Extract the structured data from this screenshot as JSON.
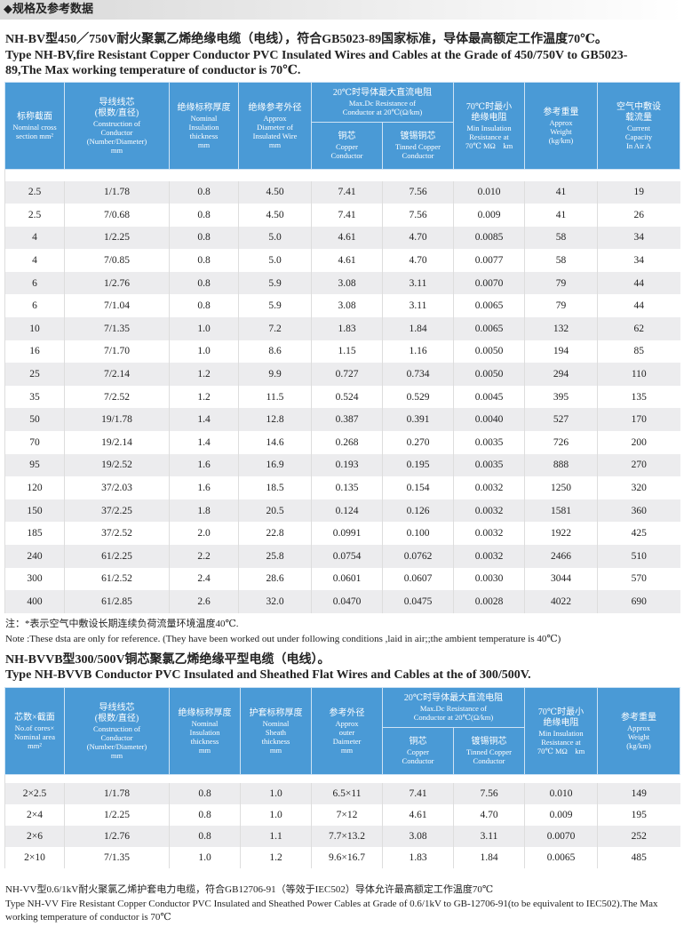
{
  "header": {
    "title": "◆规格及参考数据"
  },
  "section1": {
    "title_zh": "NH-BV型450／750V耐火聚氯乙烯绝缘电缆（电线），符合GB5023-89国家标准，导体最高额定工作温度70℃。",
    "title_en": "Type NH-BV,fire Resistant Copper Conductor PVC Insulated Wires and Cables at the Grade of 450/750V to GB5023-89,The Max working temperature of conductor is 70℃."
  },
  "table1": {
    "columns": [
      {
        "lines": [
          "标称截面",
          "Nominal cross",
          "section mm²"
        ]
      },
      {
        "lines": [
          "导线线芯",
          "(根数/直径)",
          "Construction of",
          "Conductor",
          "(Number/Diameter)",
          "mm"
        ]
      },
      {
        "lines": [
          "绝缘标称厚度",
          "Nominal",
          "Insulation",
          "thickness",
          "mm"
        ]
      },
      {
        "lines": [
          "绝缘参考外径",
          "Approx",
          "Diameter of",
          "Insulated Wire",
          "mm"
        ]
      },
      {
        "lines": [
          "20℃时导体最大直流电阻",
          "Max.Dc Resistance of",
          "Conductor at 20℃(Ω/km)"
        ],
        "sub": [
          {
            "lines": [
              "铜芯",
              "Copper",
              "Conductor"
            ]
          },
          {
            "lines": [
              "镀锡铜芯",
              "Tinned Copper",
              "Conductor"
            ]
          }
        ]
      },
      {
        "lines": [
          "70℃时最小",
          "绝缘电阻",
          "Min Insulation",
          "Resistance at",
          "70℃ MΩ　km"
        ]
      },
      {
        "lines": [
          "参考重量",
          "Approx",
          "Weight",
          "(kg/km)"
        ]
      },
      {
        "lines": [
          "空气中敷设",
          "载流量",
          "Current",
          "Capacity",
          "In Air A"
        ]
      }
    ],
    "rows": [
      [
        "2.5",
        "1/1.78",
        "0.8",
        "4.50",
        "7.41",
        "7.56",
        "0.010",
        "41",
        "19"
      ],
      [
        "2.5",
        "7/0.68",
        "0.8",
        "4.50",
        "7.41",
        "7.56",
        "0.009",
        "41",
        "26"
      ],
      [
        "4",
        "1/2.25",
        "0.8",
        "5.0",
        "4.61",
        "4.70",
        "0.0085",
        "58",
        "34"
      ],
      [
        "4",
        "7/0.85",
        "0.8",
        "5.0",
        "4.61",
        "4.70",
        "0.0077",
        "58",
        "34"
      ],
      [
        "6",
        "1/2.76",
        "0.8",
        "5.9",
        "3.08",
        "3.11",
        "0.0070",
        "79",
        "44"
      ],
      [
        "6",
        "7/1.04",
        "0.8",
        "5.9",
        "3.08",
        "3.11",
        "0.0065",
        "79",
        "44"
      ],
      [
        "10",
        "7/1.35",
        "1.0",
        "7.2",
        "1.83",
        "1.84",
        "0.0065",
        "132",
        "62"
      ],
      [
        "16",
        "7/1.70",
        "1.0",
        "8.6",
        "1.15",
        "1.16",
        "0.0050",
        "194",
        "85"
      ],
      [
        "25",
        "7/2.14",
        "1.2",
        "9.9",
        "0.727",
        "0.734",
        "0.0050",
        "294",
        "110"
      ],
      [
        "35",
        "7/2.52",
        "1.2",
        "11.5",
        "0.524",
        "0.529",
        "0.0045",
        "395",
        "135"
      ],
      [
        "50",
        "19/1.78",
        "1.4",
        "12.8",
        "0.387",
        "0.391",
        "0.0040",
        "527",
        "170"
      ],
      [
        "70",
        "19/2.14",
        "1.4",
        "14.6",
        "0.268",
        "0.270",
        "0.0035",
        "726",
        "200"
      ],
      [
        "95",
        "19/2.52",
        "1.6",
        "16.9",
        "0.193",
        "0.195",
        "0.0035",
        "888",
        "270"
      ],
      [
        "120",
        "37/2.03",
        "1.6",
        "18.5",
        "0.135",
        "0.154",
        "0.0032",
        "1250",
        "320"
      ],
      [
        "150",
        "37/2.25",
        "1.8",
        "20.5",
        "0.124",
        "0.126",
        "0.0032",
        "1581",
        "360"
      ],
      [
        "185",
        "37/2.52",
        "2.0",
        "22.8",
        "0.0991",
        "0.100",
        "0.0032",
        "1922",
        "425"
      ],
      [
        "240",
        "61/2.25",
        "2.2",
        "25.8",
        "0.0754",
        "0.0762",
        "0.0032",
        "2466",
        "510"
      ],
      [
        "300",
        "61/2.52",
        "2.4",
        "28.6",
        "0.0601",
        "0.0607",
        "0.0030",
        "3044",
        "570"
      ],
      [
        "400",
        "61/2.85",
        "2.6",
        "32.0",
        "0.0470",
        "0.0475",
        "0.0028",
        "4022",
        "690"
      ]
    ]
  },
  "notes": [
    "注：*表示空气中敷设长期连续负荷流量环境温度40℃.",
    "Note :These dsta are only for reference. (They have been worked out under following conditions ,laid in air;;the ambient temperature is 40℃)"
  ],
  "section2": {
    "title_zh": "NH-BVVB型300/500V铜芯聚氯乙烯绝缘平型电缆（电线）。",
    "title_en": "Type NH-BVVB Conductor PVC Insulated and Sheathed Flat Wires and Cables at the of 300/500V."
  },
  "table2": {
    "columns": [
      {
        "lines": [
          "芯数×截面",
          "No.of cores×",
          "Nominal area",
          "mm²"
        ]
      },
      {
        "lines": [
          "导线线芯",
          "(根数/直径)",
          "Construction of",
          "Conductor",
          "(Number/Diameter)",
          "mm"
        ]
      },
      {
        "lines": [
          "绝缘标称厚度",
          "Nominal",
          "Insulation",
          "thickness",
          "mm"
        ]
      },
      {
        "lines": [
          "护套标称厚度",
          "Nominal",
          "Sheath",
          "thickness",
          "mm"
        ]
      },
      {
        "lines": [
          "参考外径",
          "Approx",
          "outer",
          "Daimeter",
          "mm"
        ]
      },
      {
        "lines": [
          "20℃时导体最大直流电阻",
          "Max.Dc Resistance of",
          "Conductor at 20℃(Ω/km)"
        ],
        "sub": [
          {
            "lines": [
              "铜芯",
              "Copper",
              "Conductor"
            ]
          },
          {
            "lines": [
              "镀锡铜芯",
              "Tinned Copper",
              "Conductor"
            ]
          }
        ]
      },
      {
        "lines": [
          "70℃时最小",
          "绝缘电阻",
          "Min Insulation",
          "Resistance at",
          "70℃ MΩ　km"
        ]
      },
      {
        "lines": [
          "参考重量",
          "Approx",
          "Weight",
          "(kg/km)"
        ]
      }
    ],
    "rows": [
      [
        "2×2.5",
        "1/1.78",
        "0.8",
        "1.0",
        "6.5×11",
        "7.41",
        "7.56",
        "0.010",
        "149"
      ],
      [
        "2×4",
        "1/2.25",
        "0.8",
        "1.0",
        "7×12",
        "4.61",
        "4.70",
        "0.009",
        "195"
      ],
      [
        "2×6",
        "1/2.76",
        "0.8",
        "1.1",
        "7.7×13.2",
        "3.08",
        "3.11",
        "0.0070",
        "252"
      ],
      [
        "2×10",
        "7/1.35",
        "1.0",
        "1.2",
        "9.6×16.7",
        "1.83",
        "1.84",
        "0.0065",
        "485"
      ]
    ]
  },
  "footer": {
    "title_zh": "NH-VV型0.6/1kV耐火聚氯乙烯护套电力电缆，符合GB12706-91（等效于IEC502）导体允许最高额定工作温度70℃",
    "title_en": "Type NH-VV Fire Resistant Copper Conductor PVC Insulated and Sheathed Power Cables at Grade of 0.6/1kV to GB-12706-91(to be equivalent to IEC502).The Max working temperature of conductor is 70℃"
  }
}
